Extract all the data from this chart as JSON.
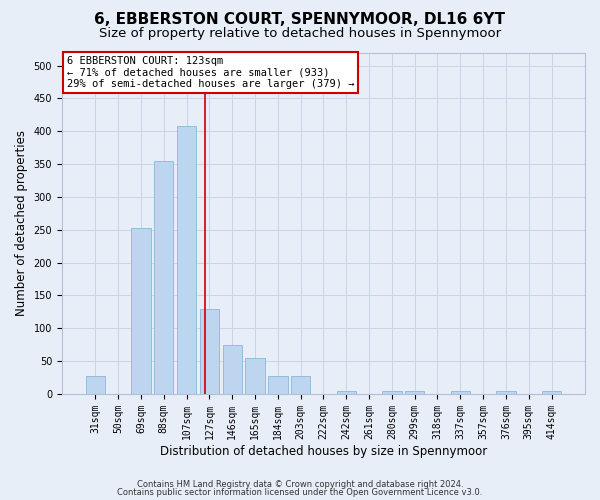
{
  "title": "6, EBBERSTON COURT, SPENNYMOOR, DL16 6YT",
  "subtitle": "Size of property relative to detached houses in Spennymoor",
  "xlabel": "Distribution of detached houses by size in Spennymoor",
  "ylabel": "Number of detached properties",
  "categories": [
    "31sqm",
    "50sqm",
    "69sqm",
    "88sqm",
    "107sqm",
    "127sqm",
    "146sqm",
    "165sqm",
    "184sqm",
    "203sqm",
    "222sqm",
    "242sqm",
    "261sqm",
    "280sqm",
    "299sqm",
    "318sqm",
    "337sqm",
    "357sqm",
    "376sqm",
    "395sqm",
    "414sqm"
  ],
  "bar_values": [
    28,
    0,
    252,
    355,
    408,
    130,
    75,
    55,
    28,
    28,
    0,
    5,
    0,
    5,
    5,
    0,
    5,
    0,
    5,
    0,
    5
  ],
  "bar_color": "#bdd5ee",
  "bar_edge_color": "#7bafd4",
  "vline_color": "#cc0000",
  "annotation_text": "6 EBBERSTON COURT: 123sqm\n← 71% of detached houses are smaller (933)\n29% of semi-detached houses are larger (379) →",
  "annotation_box_facecolor": "#ffffff",
  "annotation_box_edgecolor": "#cc0000",
  "ylim": [
    0,
    520
  ],
  "yticks": [
    0,
    50,
    100,
    150,
    200,
    250,
    300,
    350,
    400,
    450,
    500
  ],
  "footer1": "Contains HM Land Registry data © Crown copyright and database right 2024.",
  "footer2": "Contains public sector information licensed under the Open Government Licence v3.0.",
  "fig_facecolor": "#e8eef8",
  "plot_facecolor": "#e8eef8",
  "grid_color": "#c8d4e8",
  "title_fontsize": 11,
  "subtitle_fontsize": 9.5,
  "tick_fontsize": 7,
  "ylabel_fontsize": 8.5,
  "xlabel_fontsize": 8.5,
  "footer_fontsize": 6,
  "annotation_fontsize": 7.5
}
